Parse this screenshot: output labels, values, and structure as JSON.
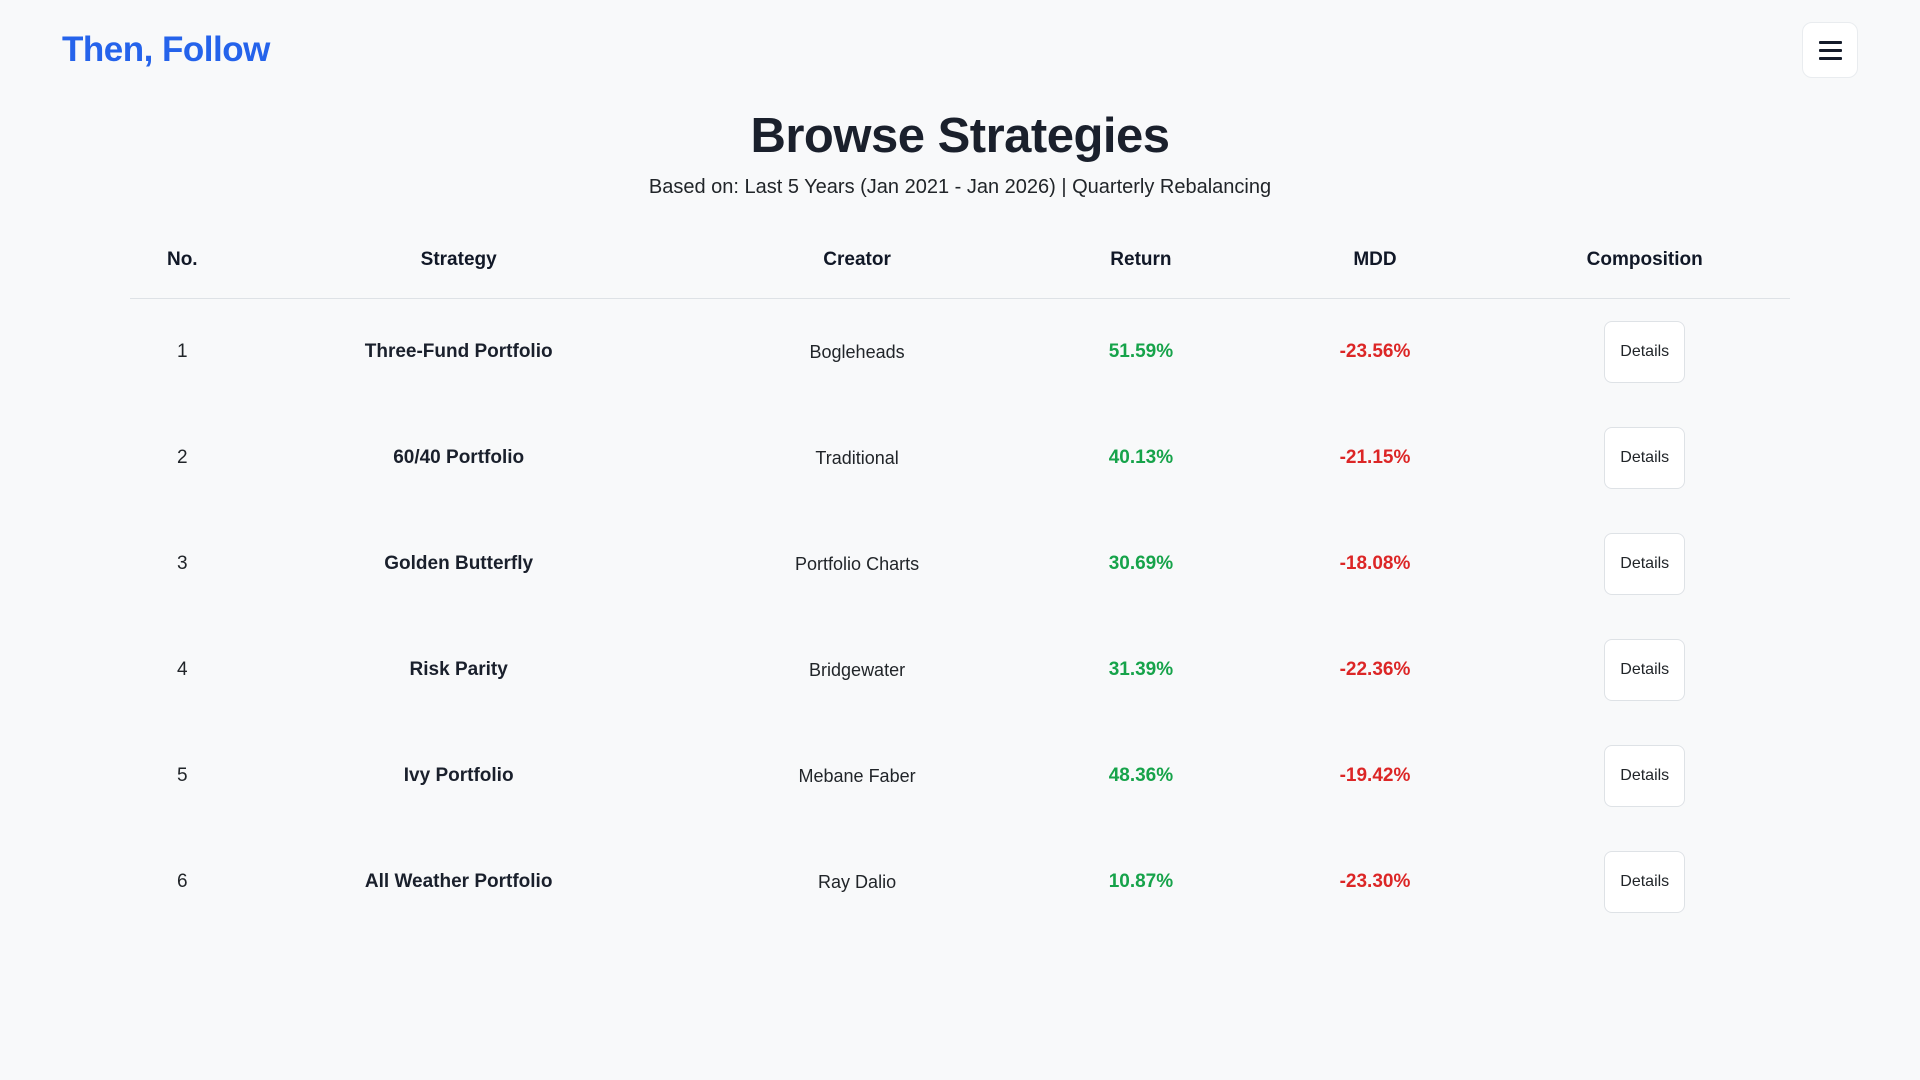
{
  "colors": {
    "background": "#f8f9fa",
    "brand_blue": "#2563eb",
    "return_positive": "#16a34a",
    "mdd_negative": "#dc2626"
  },
  "header": {
    "logo": "Then, Follow",
    "menu_icon": "hamburger-icon"
  },
  "main": {
    "title": "Browse Strategies",
    "subtitle": "Based on: Last 5 Years (Jan 2021 - Jan 2026) | Quarterly Rebalancing"
  },
  "table": {
    "columns": {
      "no": "No.",
      "strategy": "Strategy",
      "creator": "Creator",
      "return": "Return",
      "mdd": "MDD",
      "composition": "Composition"
    },
    "details_label": "Details",
    "rows": [
      {
        "no": "1",
        "strategy": "Three-Fund Portfolio",
        "creator": "Bogleheads",
        "return": "51.59%",
        "mdd": "-23.56%"
      },
      {
        "no": "2",
        "strategy": "60/40 Portfolio",
        "creator": "Traditional",
        "return": "40.13%",
        "mdd": "-21.15%"
      },
      {
        "no": "3",
        "strategy": "Golden Butterfly",
        "creator": "Portfolio Charts",
        "return": "30.69%",
        "mdd": "-18.08%"
      },
      {
        "no": "4",
        "strategy": "Risk Parity",
        "creator": "Bridgewater",
        "return": "31.39%",
        "mdd": "-22.36%"
      },
      {
        "no": "5",
        "strategy": "Ivy Portfolio",
        "creator": "Mebane Faber",
        "return": "48.36%",
        "mdd": "-19.42%"
      },
      {
        "no": "6",
        "strategy": "All Weather Portfolio",
        "creator": "Ray Dalio",
        "return": "10.87%",
        "mdd": "-23.30%"
      }
    ]
  }
}
